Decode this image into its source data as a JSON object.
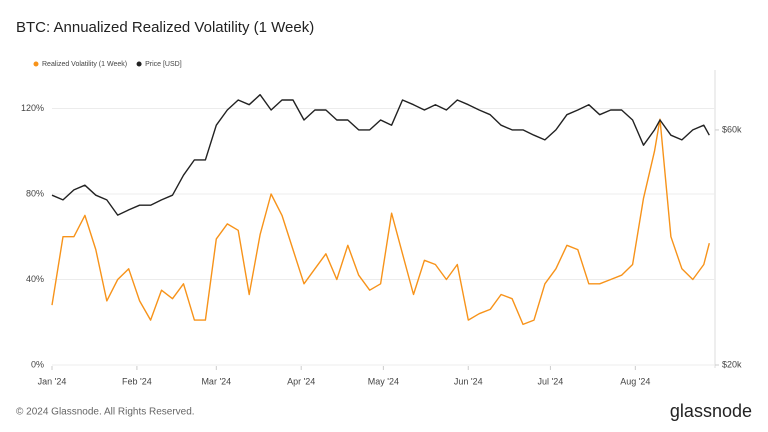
{
  "chart_data": {
    "type": "line",
    "title": "BTC: Annualized Realized Volatility (1 Week)",
    "footer": "© 2024 Glassnode. All Rights Reserved.",
    "brand": "glassnode",
    "legend": "top-left",
    "grid": true,
    "x": [
      0,
      4,
      8,
      12,
      16,
      20,
      24,
      28,
      32,
      36,
      40,
      44,
      48,
      52,
      56,
      60,
      64,
      68,
      72,
      76,
      80,
      84,
      88,
      92,
      96,
      100,
      104,
      108,
      112,
      116,
      120,
      124,
      128,
      132,
      136,
      140,
      144,
      148,
      152,
      156,
      160,
      164,
      168,
      172,
      176,
      180,
      184,
      188,
      192,
      196,
      200,
      204,
      208,
      212,
      216,
      220,
      222,
      226,
      230,
      234,
      238,
      240
    ],
    "xlim": [
      0,
      241
    ],
    "xticks": [
      {
        "value": 0,
        "label": "Jan '24"
      },
      {
        "value": 31,
        "label": "Feb '24"
      },
      {
        "value": 60,
        "label": "Mar '24"
      },
      {
        "value": 91,
        "label": "Apr '24"
      },
      {
        "value": 121,
        "label": "May '24"
      },
      {
        "value": 152,
        "label": "Jun '24"
      },
      {
        "value": 182,
        "label": "Jul '24"
      },
      {
        "value": 213,
        "label": "Aug '24"
      }
    ],
    "ylim": [
      0,
      138
    ],
    "yticks": [
      {
        "value": 0,
        "label": "0%"
      },
      {
        "value": 40,
        "label": "40%"
      },
      {
        "value": 80,
        "label": "80%"
      },
      {
        "value": 120,
        "label": "120%"
      }
    ],
    "y2lim": [
      20000,
      70200
    ],
    "y2ticks": [
      {
        "value": 20000,
        "label": "$20k"
      },
      {
        "value": 60000,
        "label": "$60k"
      }
    ],
    "series": [
      {
        "name": "Realized Volatility (1 Week)",
        "color": "#f7931a",
        "values": [
          28,
          60,
          60,
          70,
          54,
          30,
          40,
          45,
          30,
          21,
          35,
          31,
          38,
          21,
          21,
          59,
          66,
          63,
          33,
          61,
          80,
          70,
          54,
          38,
          45,
          52,
          40,
          56,
          42,
          35,
          38,
          71,
          52,
          33,
          49,
          47,
          40,
          47,
          21,
          24,
          26,
          33,
          31,
          19,
          21,
          38,
          45,
          56,
          54,
          38,
          38,
          40,
          42,
          47,
          78,
          100,
          115,
          60,
          45,
          40,
          47,
          57
        ]
      },
      {
        "name": "Price [USD]",
        "color": "#222222",
        "axis": "y2",
        "values": [
          48900,
          48100,
          49800,
          50600,
          48900,
          48100,
          45500,
          46400,
          47200,
          47200,
          48100,
          48900,
          52300,
          54900,
          54900,
          60800,
          63400,
          65100,
          64300,
          66000,
          63400,
          65100,
          65100,
          61700,
          63400,
          63400,
          61700,
          61700,
          60000,
          60000,
          61700,
          60800,
          65100,
          64300,
          63400,
          64300,
          63400,
          65100,
          64300,
          63400,
          62600,
          60800,
          60000,
          60000,
          59100,
          58300,
          60000,
          62600,
          63400,
          64300,
          62600,
          63400,
          63400,
          61700,
          57400,
          60000,
          61700,
          59100,
          58300,
          60000,
          60800,
          59100
        ]
      }
    ]
  }
}
